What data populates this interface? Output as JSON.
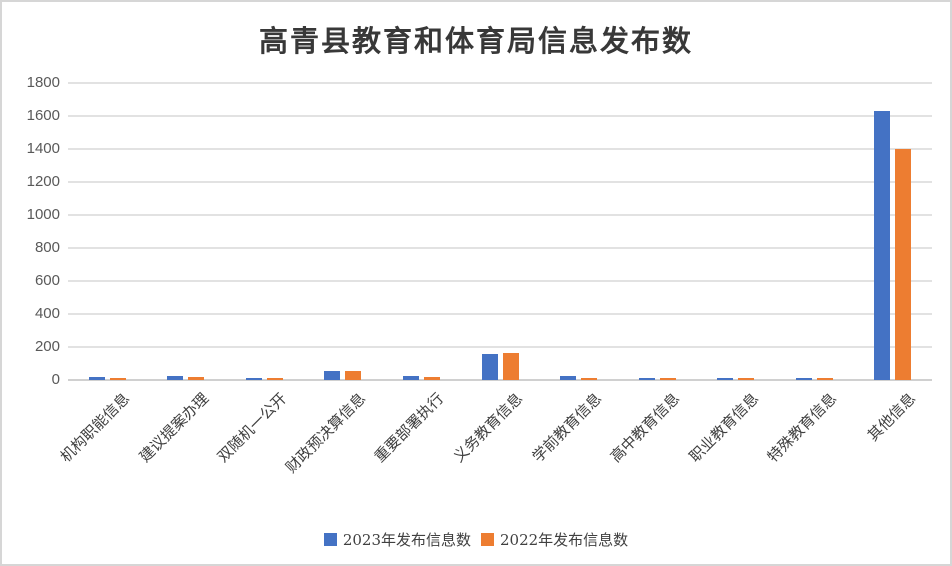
{
  "title": "高青县教育和体育局信息发布数",
  "chart_data": {
    "type": "bar",
    "title": "高青县教育和体育局信息发布数",
    "categories": [
      "机构职能信息",
      "建议提案办理",
      "双随机一公开",
      "财政预决算信息",
      "重要部署执行",
      "义务教育信息",
      "学前教育信息",
      "高中教育信息",
      "职业教育信息",
      "特殊教育信息",
      "其他信息"
    ],
    "series": [
      {
        "name": "2023年发布信息数",
        "color": "#4472C4",
        "values": [
          20,
          22,
          13,
          55,
          22,
          160,
          22,
          15,
          14,
          12,
          1630
        ]
      },
      {
        "name": "2022年发布信息数",
        "color": "#ED7D31",
        "values": [
          12,
          20,
          11,
          52,
          20,
          163,
          12,
          13,
          13,
          12,
          1400
        ]
      }
    ],
    "xlabel": "",
    "ylabel": "",
    "ylim": [
      0,
      1800
    ],
    "yticks": [
      0,
      200,
      400,
      600,
      800,
      1000,
      1200,
      1400,
      1600,
      1800
    ],
    "grid": true,
    "legend_position": "bottom"
  },
  "colors": {
    "series_2023": "#4472C4",
    "series_2022": "#ED7D31",
    "gridline": "#e2e2e2",
    "axis_line": "#d0d0d0",
    "tick_text": "#595959",
    "title_text": "#383838",
    "frame_border": "#d6d6d6",
    "background": "#ffffff"
  }
}
